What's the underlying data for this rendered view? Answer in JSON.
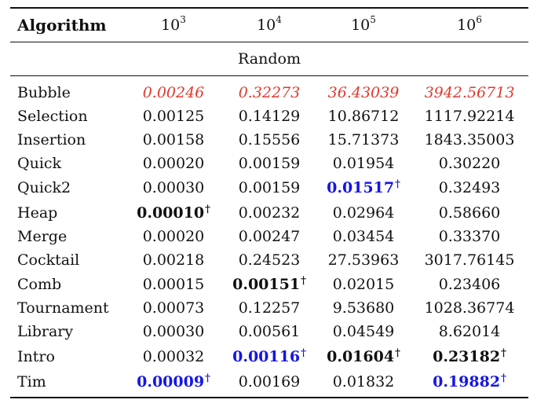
{
  "header": {
    "col0": "Algorithm",
    "sizes": [
      {
        "base": "10",
        "exp": "3"
      },
      {
        "base": "10",
        "exp": "4"
      },
      {
        "base": "10",
        "exp": "5"
      },
      {
        "base": "10",
        "exp": "6"
      }
    ]
  },
  "group_title": "Random",
  "dagger": "†",
  "rows": [
    {
      "name": "Bubble",
      "vals": [
        "0.00246",
        "0.32273",
        "36.43039",
        "3942.56713"
      ]
    },
    {
      "name": "Selection",
      "vals": [
        "0.00125",
        "0.14129",
        "10.86712",
        "1117.92214"
      ]
    },
    {
      "name": "Insertion",
      "vals": [
        "0.00158",
        "0.15556",
        "15.71373",
        "1843.35003"
      ]
    },
    {
      "name": "Quick",
      "vals": [
        "0.00020",
        "0.00159",
        "0.01954",
        "0.30220"
      ]
    },
    {
      "name": "Quick2",
      "vals": [
        "0.00030",
        "0.00159",
        "0.01517",
        "0.32493"
      ]
    },
    {
      "name": "Heap",
      "vals": [
        "0.00010",
        "0.00232",
        "0.02964",
        "0.58660"
      ]
    },
    {
      "name": "Merge",
      "vals": [
        "0.00020",
        "0.00247",
        "0.03454",
        "0.33370"
      ]
    },
    {
      "name": "Cocktail",
      "vals": [
        "0.00218",
        "0.24523",
        "27.53963",
        "3017.76145"
      ]
    },
    {
      "name": "Comb",
      "vals": [
        "0.00015",
        "0.00151",
        "0.02015",
        "0.23406"
      ]
    },
    {
      "name": "Tournament",
      "vals": [
        "0.00073",
        "0.12257",
        "9.53680",
        "1028.36774"
      ]
    },
    {
      "name": "Library",
      "vals": [
        "0.00030",
        "0.00561",
        "0.04549",
        "8.62014"
      ]
    },
    {
      "name": "Intro",
      "vals": [
        "0.00032",
        "0.00116",
        "0.01604",
        "0.23182"
      ]
    },
    {
      "name": "Tim",
      "vals": [
        "0.00009",
        "0.00169",
        "0.01832",
        "0.19882"
      ]
    }
  ],
  "styles": {
    "red_color": "#e03a2f",
    "blue_color": "#1515e6"
  }
}
